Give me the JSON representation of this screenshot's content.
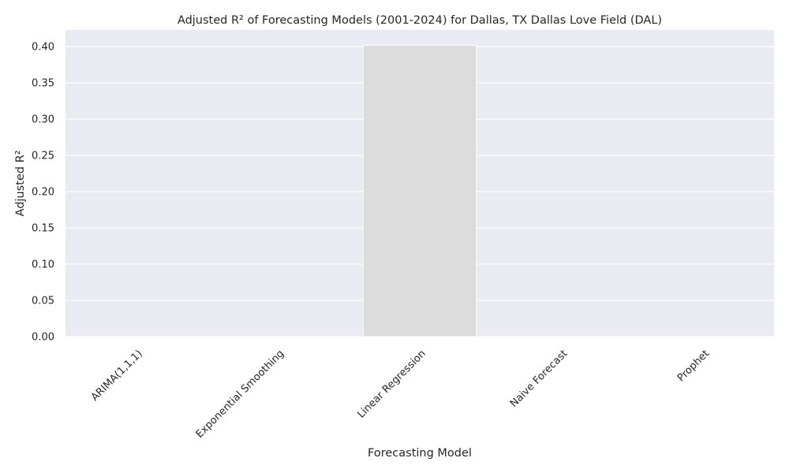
{
  "chart_data": {
    "type": "bar",
    "title": "Adjusted R² of Forecasting Models (2001-2024) for Dallas, TX Dallas Love Field (DAL)",
    "xlabel": "Forecasting Model",
    "ylabel": "Adjusted R²",
    "categories": [
      "ARIMA(1,1,1)",
      "Exponential Smoothing",
      "Linear Regression",
      "Naive Forecast",
      "Prophet"
    ],
    "values": [
      0,
      0,
      0.402,
      0,
      0
    ],
    "ylim": [
      0,
      0.423
    ],
    "yticks": [
      "0.00",
      "0.05",
      "0.10",
      "0.15",
      "0.20",
      "0.25",
      "0.30",
      "0.35",
      "0.40"
    ],
    "grid": true,
    "legend": "none",
    "colors": {
      "background": "#eaeaf2",
      "grid": "#ffffff",
      "bar": "#dcdcdc",
      "text": "#262626"
    }
  }
}
